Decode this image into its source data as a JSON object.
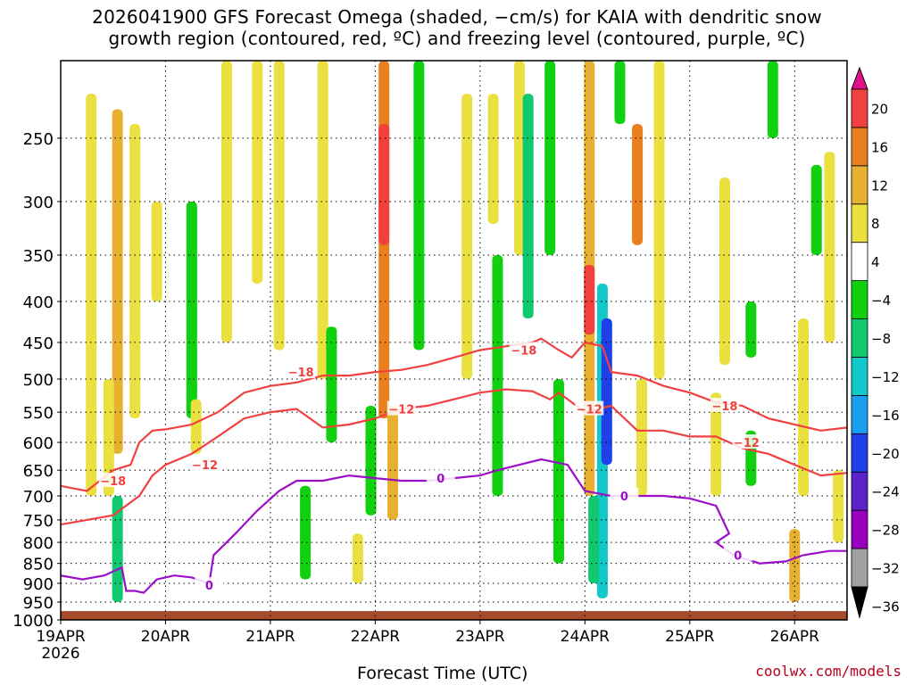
{
  "title_line1": "2026041900 GFS Forecast Omega (shaded, −cm/s) for KAIA with dendritic snow",
  "title_line2": "growth region (contoured, red, ºC) and freezing level (contoured, purple, ºC)",
  "credit": "coolwx.com/models",
  "colors": {
    "dgz": "#f04040",
    "freezing": "#9b0fc8",
    "ground": "#a44b2a",
    "grid": "#000000"
  },
  "chart_data": {
    "type": "heatmap",
    "xlabel": "Forecast Time (UTC)",
    "ylabel": "",
    "x_axis": {
      "range": [
        "2026-04-19 00Z",
        "2026-04-26 12Z"
      ],
      "ticks": [
        "19APR",
        "20APR",
        "21APR",
        "22APR",
        "23APR",
        "24APR",
        "25APR",
        "26APR"
      ],
      "tick_hours": [
        0,
        24,
        48,
        72,
        96,
        120,
        144,
        168
      ],
      "first_tick_year": "2026",
      "max_hour": 180
    },
    "y_axis": {
      "scale": "log-pressure",
      "reversed": true,
      "range_hpa": [
        1000,
        200
      ],
      "ticks": [
        250,
        300,
        350,
        400,
        450,
        500,
        550,
        600,
        650,
        700,
        750,
        800,
        850,
        900,
        950,
        1000
      ]
    },
    "grid": true,
    "colorbar": {
      "labels": [
        "20",
        "16",
        "12",
        "8",
        "4",
        "−4",
        "−8",
        "−12",
        "−16",
        "−20",
        "−24",
        "−28",
        "−32",
        "−36"
      ],
      "bins": [
        {
          "range": "<-36",
          "color": "#000000"
        },
        {
          "range": "-36..-32",
          "color": "#a0a0a0"
        },
        {
          "range": "-32..-28",
          "color": "#9900bb"
        },
        {
          "range": "-28..-24",
          "color": "#5a22c8"
        },
        {
          "range": "-24..-20",
          "color": "#1f3fe8"
        },
        {
          "range": "-20..-16",
          "color": "#1a9ef0"
        },
        {
          "range": "-16..-12",
          "color": "#12c8c8"
        },
        {
          "range": "-12..-8",
          "color": "#10c870"
        },
        {
          "range": "-8..-4",
          "color": "#10d010"
        },
        {
          "range": "-4..4",
          "color": "#ffffff"
        },
        {
          "range": "4..8",
          "color": "#eae040"
        },
        {
          "range": "8..12",
          "color": "#e8b030"
        },
        {
          "range": "12..16",
          "color": "#e88020"
        },
        {
          "range": "16..20",
          "color": "#f04040"
        },
        {
          "range": ">20",
          "color": "#e0108a"
        }
      ]
    },
    "shaded_regions": [
      {
        "hour": 7,
        "p_top": 220,
        "p_bot": 700,
        "value": 6
      },
      {
        "hour": 13,
        "p_top": 230,
        "p_bot": 620,
        "value": 10
      },
      {
        "hour": 17,
        "p_top": 240,
        "p_bot": 560,
        "value": 6
      },
      {
        "hour": 22,
        "p_top": 300,
        "p_bot": 400,
        "value": 5
      },
      {
        "hour": 13,
        "p_top": 700,
        "p_bot": 950,
        "value": -9
      },
      {
        "hour": 11,
        "p_top": 500,
        "p_bot": 700,
        "value": 5
      },
      {
        "hour": 30,
        "p_top": 300,
        "p_bot": 560,
        "value": -6
      },
      {
        "hour": 31,
        "p_top": 530,
        "p_bot": 620,
        "value": 5
      },
      {
        "hour": 38,
        "p_top": 200,
        "p_bot": 450,
        "value": 6
      },
      {
        "hour": 45,
        "p_top": 200,
        "p_bot": 380,
        "value": 5
      },
      {
        "hour": 50,
        "p_top": 200,
        "p_bot": 460,
        "value": 5
      },
      {
        "hour": 56,
        "p_top": 680,
        "p_bot": 890,
        "value": -7
      },
      {
        "hour": 60,
        "p_top": 200,
        "p_bot": 500,
        "value": 5
      },
      {
        "hour": 62,
        "p_top": 430,
        "p_bot": 600,
        "value": -6
      },
      {
        "hour": 68,
        "p_top": 780,
        "p_bot": 900,
        "value": 5
      },
      {
        "hour": 74,
        "p_top": 200,
        "p_bot": 560,
        "value": 12
      },
      {
        "hour": 74,
        "p_top": 240,
        "p_bot": 340,
        "value": 17
      },
      {
        "hour": 82,
        "p_top": 200,
        "p_bot": 460,
        "value": -8
      },
      {
        "hour": 76,
        "p_top": 540,
        "p_bot": 750,
        "value": 10
      },
      {
        "hour": 71,
        "p_top": 540,
        "p_bot": 740,
        "value": -6
      },
      {
        "hour": 93,
        "p_top": 220,
        "p_bot": 500,
        "value": 5
      },
      {
        "hour": 100,
        "p_top": 350,
        "p_bot": 700,
        "value": -6
      },
      {
        "hour": 99,
        "p_top": 220,
        "p_bot": 320,
        "value": 5
      },
      {
        "hour": 105,
        "p_top": 200,
        "p_bot": 350,
        "value": 6
      },
      {
        "hour": 107,
        "p_top": 220,
        "p_bot": 420,
        "value": -10
      },
      {
        "hour": 112,
        "p_top": 200,
        "p_bot": 350,
        "value": -7
      },
      {
        "hour": 114,
        "p_top": 500,
        "p_bot": 850,
        "value": -6
      },
      {
        "hour": 121,
        "p_top": 200,
        "p_bot": 700,
        "value": 8
      },
      {
        "hour": 121,
        "p_top": 360,
        "p_bot": 440,
        "value": 16
      },
      {
        "hour": 124,
        "p_top": 380,
        "p_bot": 940,
        "value": -14
      },
      {
        "hour": 125,
        "p_top": 420,
        "p_bot": 640,
        "value": -22
      },
      {
        "hour": 122,
        "p_top": 700,
        "p_bot": 900,
        "value": -12
      },
      {
        "hour": 132,
        "p_top": 240,
        "p_bot": 340,
        "value": 14
      },
      {
        "hour": 128,
        "p_top": 200,
        "p_bot": 240,
        "value": -7
      },
      {
        "hour": 133,
        "p_top": 500,
        "p_bot": 700,
        "value": 6
      },
      {
        "hour": 137,
        "p_top": 200,
        "p_bot": 500,
        "value": 6
      },
      {
        "hour": 152,
        "p_top": 280,
        "p_bot": 480,
        "value": 5
      },
      {
        "hour": 150,
        "p_top": 520,
        "p_bot": 700,
        "value": 5
      },
      {
        "hour": 158,
        "p_top": 580,
        "p_bot": 680,
        "value": -6
      },
      {
        "hour": 158,
        "p_top": 400,
        "p_bot": 470,
        "value": -6
      },
      {
        "hour": 163,
        "p_top": 200,
        "p_bot": 250,
        "value": -6
      },
      {
        "hour": 173,
        "p_top": 270,
        "p_bot": 350,
        "value": -6
      },
      {
        "hour": 176,
        "p_top": 260,
        "p_bot": 450,
        "value": 6
      },
      {
        "hour": 170,
        "p_top": 420,
        "p_bot": 700,
        "value": 5
      },
      {
        "hour": 168,
        "p_top": 770,
        "p_bot": 950,
        "value": 10
      },
      {
        "hour": 178,
        "p_top": 650,
        "p_bot": 800,
        "value": 5
      }
    ],
    "contours": [
      {
        "level": -18,
        "label": "−18",
        "color": "#f04040",
        "label_positions": [
          [
            12,
            670
          ],
          [
            55,
            490
          ],
          [
            106,
            460
          ],
          [
            152,
            540
          ]
        ],
        "x": [
          0,
          6,
          12,
          16,
          18,
          21,
          24,
          30,
          36,
          42,
          48,
          54,
          60,
          66,
          72,
          78,
          84,
          90,
          96,
          102,
          108,
          110,
          114,
          117,
          120,
          124,
          126,
          132,
          138,
          144,
          150,
          156,
          162,
          168,
          174,
          180
        ],
        "y": [
          680,
          690,
          650,
          640,
          600,
          580,
          578,
          570,
          550,
          520,
          510,
          505,
          495,
          495,
          490,
          487,
          480,
          470,
          460,
          455,
          450,
          445,
          460,
          470,
          450,
          455,
          490,
          495,
          510,
          520,
          535,
          540,
          560,
          570,
          580,
          575
        ]
      },
      {
        "level": -12,
        "label": "−12",
        "color": "#f04040",
        "label_positions": [
          [
            33,
            640
          ],
          [
            78,
            545
          ],
          [
            121,
            545
          ],
          [
            157,
            600
          ]
        ],
        "x": [
          0,
          6,
          12,
          18,
          21,
          24,
          30,
          36,
          42,
          48,
          54,
          60,
          66,
          72,
          78,
          84,
          90,
          96,
          102,
          108,
          112,
          114,
          120,
          126,
          132,
          138,
          144,
          150,
          156,
          162,
          168,
          174,
          180
        ],
        "y": [
          760,
          750,
          740,
          700,
          660,
          640,
          620,
          590,
          560,
          550,
          545,
          575,
          570,
          560,
          545,
          540,
          530,
          520,
          515,
          518,
          530,
          520,
          550,
          540,
          580,
          580,
          590,
          590,
          610,
          620,
          640,
          660,
          655
        ]
      },
      {
        "level": 0,
        "label": "0",
        "color": "#9b0fc8",
        "label_positions": [
          [
            34,
            905
          ],
          [
            87,
            665
          ],
          [
            129,
            700
          ],
          [
            155,
            830
          ]
        ],
        "x": [
          0,
          5,
          10,
          14,
          15,
          17,
          19,
          22,
          26,
          30,
          34,
          35,
          36,
          40,
          45,
          50,
          54,
          60,
          66,
          72,
          78,
          84,
          90,
          96,
          100,
          105,
          110,
          116,
          120,
          126,
          132,
          138,
          144,
          150,
          153,
          150,
          154,
          160,
          166,
          170,
          176,
          180
        ],
        "y": [
          880,
          890,
          880,
          860,
          920,
          920,
          925,
          890,
          880,
          885,
          900,
          830,
          820,
          780,
          730,
          690,
          670,
          670,
          660,
          665,
          670,
          670,
          665,
          660,
          650,
          640,
          630,
          640,
          690,
          700,
          700,
          700,
          705,
          720,
          780,
          800,
          830,
          850,
          845,
          830,
          820,
          820
        ]
      }
    ],
    "ground": {
      "pressure_hpa": 975,
      "color": "#a44b2a"
    }
  }
}
